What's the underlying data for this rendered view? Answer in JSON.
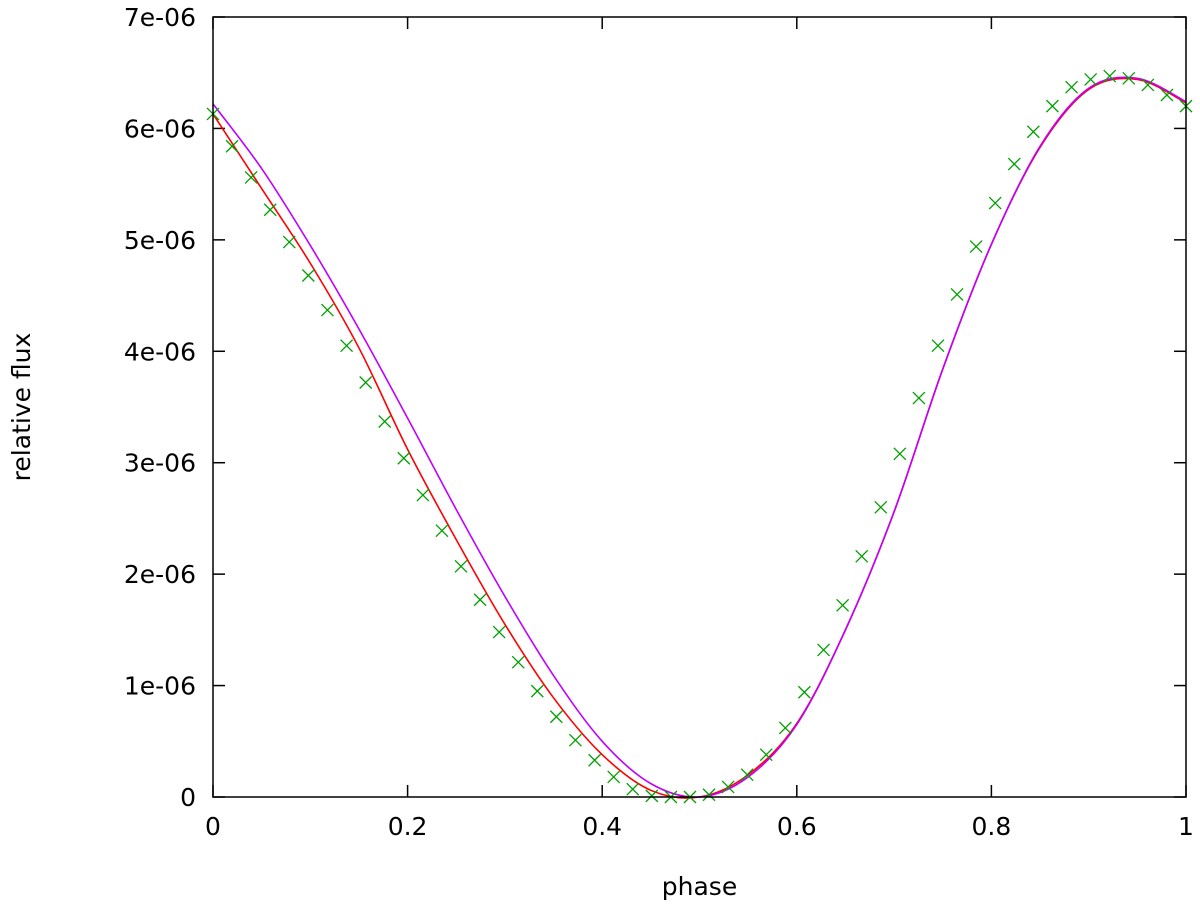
{
  "chart_data": {
    "type": "line",
    "title": "",
    "xlabel": "phase",
    "ylabel": "relative flux",
    "xlim": [
      0,
      1
    ],
    "ylim": [
      0,
      7e-06
    ],
    "x_ticks": [
      {
        "value": 0,
        "label": "0"
      },
      {
        "value": 0.2,
        "label": "0.2"
      },
      {
        "value": 0.4,
        "label": "0.4"
      },
      {
        "value": 0.6,
        "label": "0.6"
      },
      {
        "value": 0.8,
        "label": "0.8"
      },
      {
        "value": 1,
        "label": "1"
      }
    ],
    "y_ticks": [
      {
        "value": 0,
        "label": "0"
      },
      {
        "value": 1e-06,
        "label": "1e-06"
      },
      {
        "value": 2e-06,
        "label": "2e-06"
      },
      {
        "value": 3e-06,
        "label": "3e-06"
      },
      {
        "value": 4e-06,
        "label": "4e-06"
      },
      {
        "value": 5e-06,
        "label": "5e-06"
      },
      {
        "value": 6e-06,
        "label": "6e-06"
      },
      {
        "value": 7e-06,
        "label": "7e-06"
      }
    ],
    "grid": false,
    "legend": "none",
    "series": [
      {
        "style": "markers",
        "marker": "x",
        "color": "#00a000",
        "x": [
          0.0,
          0.0196,
          0.0392,
          0.0588,
          0.0784,
          0.098,
          0.1176,
          0.1373,
          0.1569,
          0.1765,
          0.1961,
          0.2157,
          0.2353,
          0.2549,
          0.2745,
          0.2941,
          0.3137,
          0.3333,
          0.3529,
          0.3725,
          0.3922,
          0.4118,
          0.4314,
          0.451,
          0.4706,
          0.4902,
          0.5098,
          0.5294,
          0.549,
          0.5686,
          0.5882,
          0.6078,
          0.6275,
          0.6471,
          0.6667,
          0.6863,
          0.7059,
          0.7255,
          0.7451,
          0.7647,
          0.7843,
          0.8039,
          0.8235,
          0.8431,
          0.8627,
          0.8824,
          0.902,
          0.9216,
          0.9412,
          0.9608,
          0.9804,
          1.0
        ],
        "y": [
          6.13e-06,
          5.84e-06,
          5.56e-06,
          5.27e-06,
          4.98e-06,
          4.68e-06,
          4.37e-06,
          4.05e-06,
          3.72e-06,
          3.37e-06,
          3.04e-06,
          2.71e-06,
          2.39e-06,
          2.07e-06,
          1.77e-06,
          1.48e-06,
          1.21e-06,
          9.5e-07,
          7.2e-07,
          5.1e-07,
          3.3e-07,
          1.8e-07,
          7e-08,
          1e-08,
          0.0,
          0.0,
          2e-08,
          9e-08,
          2e-07,
          3.8e-07,
          6.2e-07,
          9.4e-07,
          1.32e-06,
          1.72e-06,
          2.16e-06,
          2.6e-06,
          3.08e-06,
          3.58e-06,
          4.05e-06,
          4.51e-06,
          4.94e-06,
          5.33e-06,
          5.68e-06,
          5.97e-06,
          6.2e-06,
          6.37e-06,
          6.44e-06,
          6.47e-06,
          6.45e-06,
          6.39e-06,
          6.3e-06,
          6.2e-06
        ]
      },
      {
        "style": "line",
        "color": "#ff0000",
        "x": [
          0.0,
          0.05,
          0.1,
          0.15,
          0.2,
          0.25,
          0.3,
          0.35,
          0.4,
          0.45,
          0.5,
          0.55,
          0.6,
          0.65,
          0.7,
          0.75,
          0.8,
          0.85,
          0.9,
          0.95,
          1.0
        ],
        "y": [
          6.13e-06,
          5.46e-06,
          4.79e-06,
          4.03e-06,
          3.12e-06,
          2.31e-06,
          1.55e-06,
          8.9e-07,
          3.8e-07,
          6e-08,
          0.0,
          2e-07,
          6.6e-07,
          1.5e-06,
          2.56e-06,
          3.84e-06,
          4.96e-06,
          5.83e-06,
          6.35e-06,
          6.44e-06,
          6.23e-06
        ]
      },
      {
        "style": "line",
        "color": "#c000ff",
        "x": [
          0.0,
          0.05,
          0.1,
          0.15,
          0.2,
          0.25,
          0.3,
          0.35,
          0.4,
          0.45,
          0.5,
          0.55,
          0.6,
          0.65,
          0.7,
          0.75,
          0.8,
          0.85,
          0.9,
          0.95,
          1.0
        ],
        "y": [
          6.22e-06,
          5.64e-06,
          4.95e-06,
          4.2e-06,
          3.4e-06,
          2.58e-06,
          1.8e-06,
          1.09e-06,
          5e-07,
          1.2e-07,
          0.0,
          1.8e-07,
          6.5e-07,
          1.5e-06,
          2.56e-06,
          3.84e-06,
          4.96e-06,
          5.84e-06,
          6.36e-06,
          6.45e-06,
          6.24e-06
        ]
      }
    ]
  }
}
